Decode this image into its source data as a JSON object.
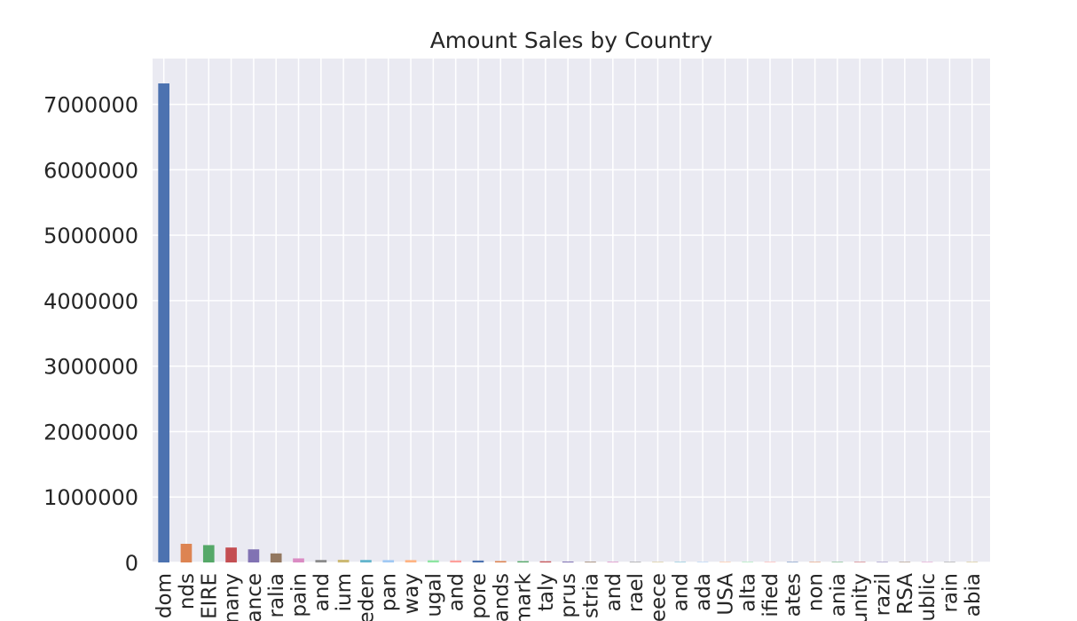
{
  "chart_data": {
    "type": "bar",
    "title": "Amount Sales by Country",
    "xlabel": "",
    "ylabel": "",
    "ylim": [
      0,
      7700000
    ],
    "yticks": [
      0,
      1000000,
      2000000,
      3000000,
      4000000,
      5000000,
      6000000,
      7000000
    ],
    "ytick_labels": [
      "0",
      "1000000",
      "2000000",
      "3000000",
      "4000000",
      "5000000",
      "6000000",
      "7000000"
    ],
    "grid": true,
    "legend": "none",
    "background": "#eaeaf2",
    "categories": [
      "dom",
      "nds",
      "EIRE",
      "nany",
      "ance",
      "ralia",
      "pain",
      "and",
      "ium",
      "eden",
      "pan",
      "way",
      "ugal",
      "and",
      "pore",
      "ands",
      "mark",
      "taly",
      "prus",
      "stria",
      "and",
      "rael",
      "eece",
      "and",
      "ada",
      "USA",
      "alta",
      "ified",
      "ates",
      "non",
      "ania",
      "unity",
      "razil",
      "RSA",
      "ublic",
      "rain",
      "abia"
    ],
    "values": [
      7320000,
      285000,
      265000,
      228000,
      200000,
      138000,
      62000,
      38000,
      41000,
      38000,
      36000,
      36000,
      32000,
      30000,
      29000,
      21000,
      19000,
      17000,
      14000,
      10000,
      10000,
      8000,
      5000,
      5000,
      4000,
      4000,
      4000,
      4000,
      2000,
      2000,
      1500,
      1300,
      1200,
      1100,
      1000,
      600,
      200
    ],
    "colors": [
      "#4c72b0",
      "#dd8452",
      "#55a868",
      "#c44e52",
      "#8172b3",
      "#937860",
      "#da8bc3",
      "#8c8c8c",
      "#ccb974",
      "#64b5cd",
      "#a1c9f4",
      "#ffb482",
      "#8de5a1",
      "#ff9f9b"
    ]
  }
}
